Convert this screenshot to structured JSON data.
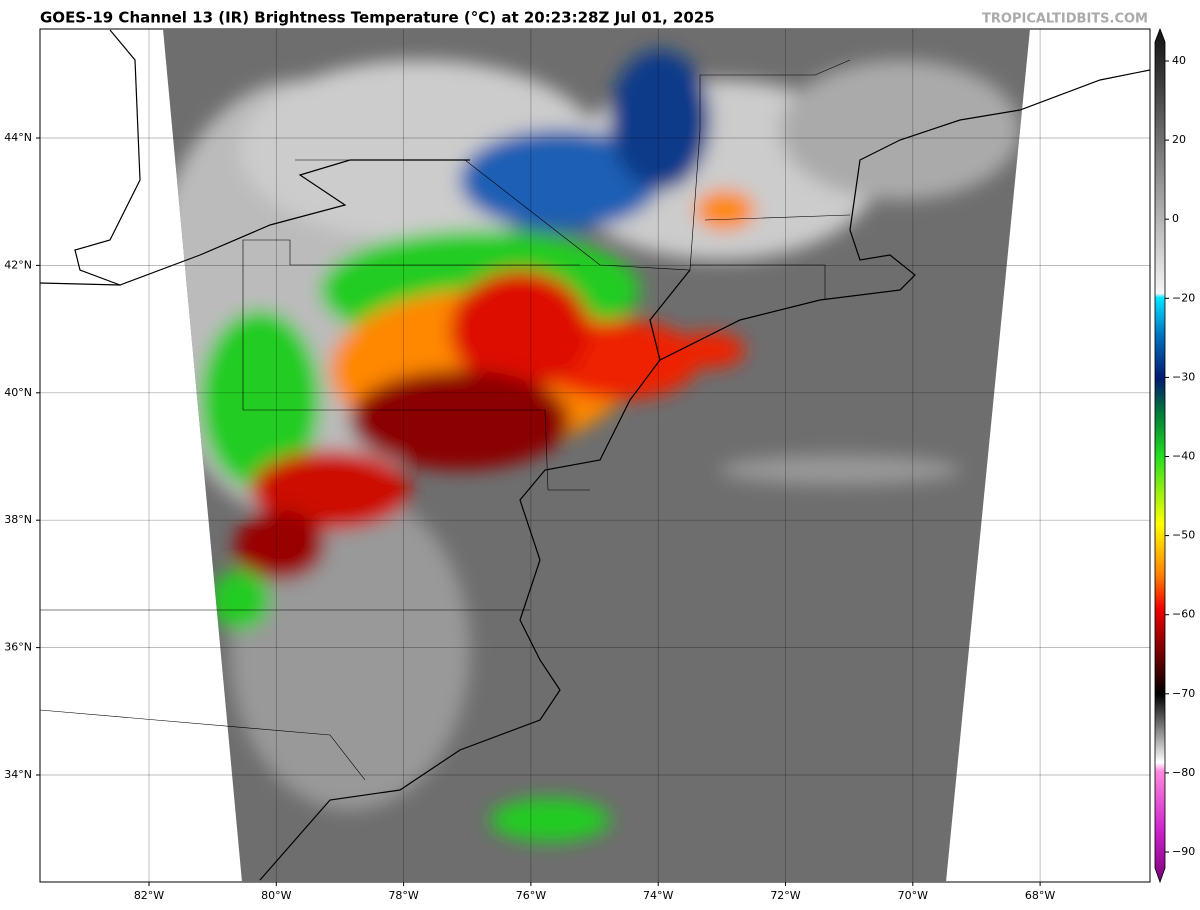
{
  "header": {
    "title": "GOES-19 Channel 13 (IR) Brightness Temperature (°C) at 20:23:28Z Jul 01, 2025",
    "watermark": "TROPICALTIDBITS.COM"
  },
  "map": {
    "lon_labels": [
      "82°W",
      "80°W",
      "78°W",
      "76°W",
      "74°W",
      "72°W",
      "70°W",
      "68°W"
    ],
    "lat_labels": [
      "44°N",
      "42°N",
      "40°N",
      "38°N",
      "36°N",
      "34°N"
    ]
  },
  "colorbar": {
    "tick_labels": [
      "40",
      "20",
      "0",
      "−20",
      "−30",
      "−40",
      "−50",
      "−60",
      "−70",
      "−80",
      "−90"
    ]
  }
}
